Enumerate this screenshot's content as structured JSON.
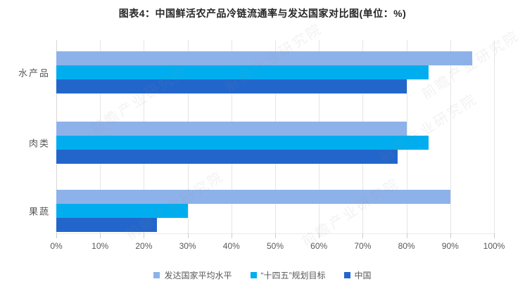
{
  "title": "图表4：中国鲜活农产品冷链流通率与发达国家对比图(单位：%)",
  "watermark_text": "前瞻产业研究院",
  "colors": {
    "developed_avg": "#8DB2EA",
    "plan_target": "#00AEEF",
    "china": "#2366CB",
    "gridline": "#E5E5E5",
    "axis_text": "#595959"
  },
  "chart_data": {
    "type": "bar",
    "orientation": "horizontal",
    "title": "图表4：中国鲜活农产品冷链流通率与发达国家对比图(单位：%)",
    "categories": [
      "水产品",
      "肉类",
      "果蔬"
    ],
    "series": [
      {
        "name": "发达国家平均水平",
        "color": "#8DB2EA",
        "values": [
          95,
          80,
          90
        ]
      },
      {
        "name": "“十四五”规划目标",
        "color": "#00AEEF",
        "values": [
          85,
          85,
          30
        ]
      },
      {
        "name": "中国",
        "color": "#2366CB",
        "values": [
          80,
          78,
          23
        ]
      }
    ],
    "xlim": [
      0,
      100
    ],
    "x_tick_labels": [
      "0%",
      "10%",
      "20%",
      "30%",
      "40%",
      "50%",
      "60%",
      "70%",
      "80%",
      "90%",
      "100%"
    ],
    "xlabel": "",
    "ylabel": "",
    "grid": true,
    "legend_position": "bottom"
  }
}
